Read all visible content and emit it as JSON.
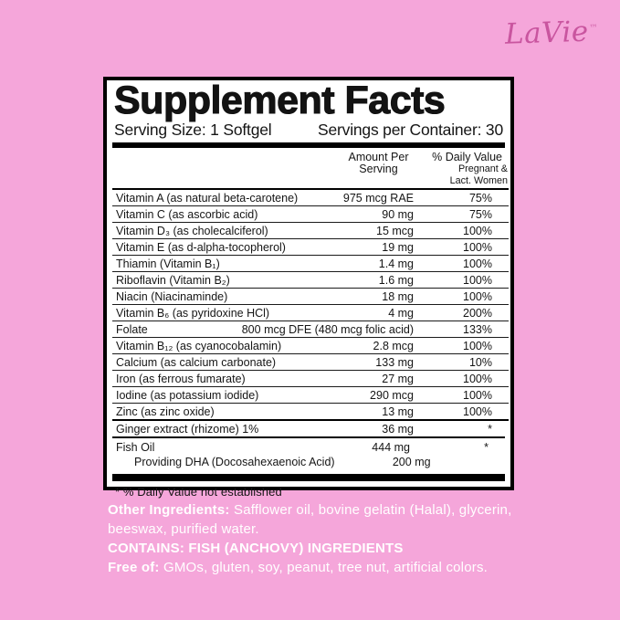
{
  "brand": {
    "logo": "LaVie",
    "tm": "™"
  },
  "colors": {
    "background": "#F5A6DA",
    "logo": "#C9559F",
    "panel_bg": "#FFFFFF",
    "panel_border": "#000000",
    "bottom_text": "#FFFFFF"
  },
  "panel": {
    "title": "Supplement Facts",
    "serving_size": "Serving Size: 1 Softgel",
    "servings_per_container": "Servings per Container: 30",
    "columns": {
      "amount_line1": "Amount Per",
      "amount_line2": "Serving",
      "dv_line1": "% Daily Value",
      "dv_line2": "Pregnant &",
      "dv_line3": "Lact. Women"
    },
    "rows": [
      {
        "name": "Vitamin A (as natural beta-carotene)",
        "amount": "975 mcg RAE",
        "dv": "75%"
      },
      {
        "name": "Vitamin C (as ascorbic acid)",
        "amount": "90 mg",
        "dv": "75%"
      },
      {
        "name": "Vitamin D₃ (as cholecalciferol)",
        "amount": "15 mcg",
        "dv": "100%"
      },
      {
        "name": "Vitamin E (as d-alpha-tocopherol)",
        "amount": "19 mg",
        "dv": "100%"
      },
      {
        "name": "Thiamin (Vitamin B₁)",
        "amount": "1.4 mg",
        "dv": "100%"
      },
      {
        "name": "Riboflavin (Vitamin B₂)",
        "amount": "1.6 mg",
        "dv": "100%"
      },
      {
        "name": "Niacin (Niacinaminde)",
        "amount": "18 mg",
        "dv": "100%"
      },
      {
        "name": "Vitamin B₆ (as pyridoxine HCl)",
        "amount": "4 mg",
        "dv": "200%"
      },
      {
        "name": "Folate",
        "amount": "800 mcg DFE (480 mcg folic acid)",
        "dv": "133%"
      },
      {
        "name": "Vitamin B₁₂ (as cyanocobalamin)",
        "amount": "2.8 mcg",
        "dv": "100%"
      },
      {
        "name": "Calcium (as calcium carbonate)",
        "amount": "133 mg",
        "dv": "10%"
      },
      {
        "name": "Iron (as ferrous fumarate)",
        "amount": "27 mg",
        "dv": "100%"
      },
      {
        "name": "Iodine (as potassium iodide)",
        "amount": "290 mcg",
        "dv": "100%"
      },
      {
        "name": "Zinc (as zinc oxide)",
        "amount": "13 mg",
        "dv": "100%"
      },
      {
        "name": "Ginger extract (rhizome) 1%",
        "amount": "36 mg",
        "dv": "*",
        "heavy": true
      }
    ],
    "fish_oil": {
      "name": "Fish Oil",
      "amount": "444 mg",
      "dv": "*",
      "sub_name": "Providing DHA (Docosahexaenoic Acid)",
      "sub_amount": "200 mg"
    },
    "footnote": "* % Daily Value not established"
  },
  "bottom": {
    "other_ingredients_label": "Other Ingredients:",
    "other_ingredients_text": "Safflower oil, bovine gelatin (Halal), glycerin, beeswax, purified water.",
    "contains": "CONTAINS: FISH (ANCHOVY) INGREDIENTS",
    "free_of_label": "Free of:",
    "free_of_text": "GMOs, gluten, soy, peanut, tree nut, artificial colors."
  }
}
